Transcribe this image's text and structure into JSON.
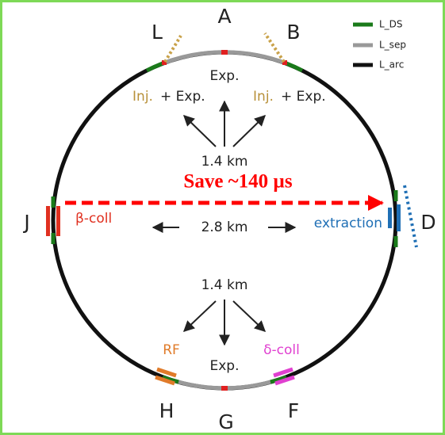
{
  "points": [
    "A",
    "L",
    "B",
    "J",
    "D",
    "H",
    "G",
    "F"
  ],
  "legend": [
    "L_DS",
    "L_sep",
    "L_arc"
  ],
  "top": {
    "exp": "Exp.",
    "inj_left": "Inj.",
    "plus_left": "+ Exp.",
    "inj_right": "Inj.",
    "plus_right": "+ Exp.",
    "distance": "1.4 km"
  },
  "middle": {
    "save": "Save ~140 µs",
    "beta_coll": "β-coll",
    "distance": "2.8 km",
    "extraction": "extraction"
  },
  "bottom": {
    "distance": "1.4 km",
    "rf": "RF",
    "exp": "Exp.",
    "delta_coll": "δ-coll"
  }
}
